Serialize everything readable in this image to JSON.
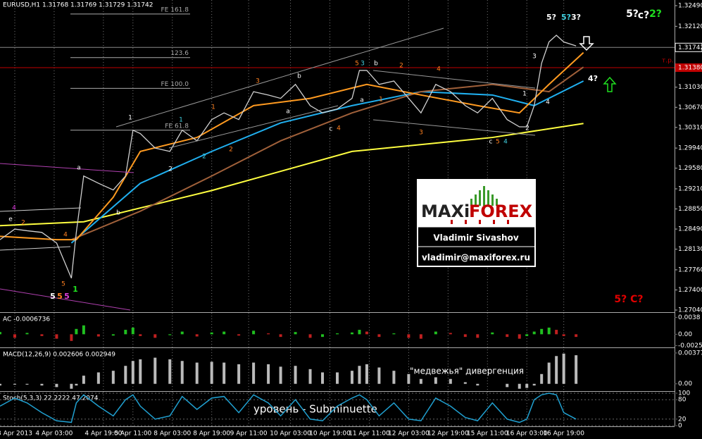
{
  "header": "EURUSD,H1  1.31768 1.31769 1.31729 1.31742",
  "price_axis": {
    "ylim": [
      1.27002,
      1.32591
    ],
    "ticks": [
      {
        "value": 1.3249,
        "label": "1.32490"
      },
      {
        "value": 1.3212,
        "label": "1.32120"
      },
      {
        "value": 1.3103,
        "label": "1.31030"
      },
      {
        "value": 1.3067,
        "label": "1.30670"
      },
      {
        "value": 1.3031,
        "label": "1.30310"
      },
      {
        "value": 1.2994,
        "label": "1.29940"
      },
      {
        "value": 1.2958,
        "label": "1.29580"
      },
      {
        "value": 1.2921,
        "label": "1.29210"
      },
      {
        "value": 1.2885,
        "label": "1.28850"
      },
      {
        "value": 1.2849,
        "label": "1.28490"
      },
      {
        "value": 1.2813,
        "label": "1.28130"
      },
      {
        "value": 1.2776,
        "label": "1.27760"
      },
      {
        "value": 1.274,
        "label": "1.27400"
      },
      {
        "value": 1.2704,
        "label": "1.27040"
      }
    ],
    "current": {
      "value": 1.31742,
      "label": "1.31742"
    },
    "level": {
      "value": 1.3138,
      "label": "1.31380",
      "name": "т.р.",
      "color": "#c00000"
    }
  },
  "time_axis": {
    "xlim": [
      0,
      274
    ],
    "ticks": [
      {
        "value": 6,
        "label": "3 Apr 2013"
      },
      {
        "value": 22,
        "label": "4 Apr 03:00"
      },
      {
        "value": 42,
        "label": "4 Apr 19:00"
      },
      {
        "value": 54,
        "label": "5 Apr 11:00"
      },
      {
        "value": 70,
        "label": "8 Apr 03:00"
      },
      {
        "value": 86,
        "label": "8 Apr 19:00"
      },
      {
        "value": 101,
        "label": "9 Apr 11:00"
      },
      {
        "value": 118,
        "label": "10 Apr 03:00"
      },
      {
        "value": 134,
        "label": "10 Apr 19:00"
      },
      {
        "value": 150,
        "label": "11 Apr 11:00"
      },
      {
        "value": 166,
        "label": "12 Apr 03:00"
      },
      {
        "value": 182,
        "label": "12 Apr 19:00"
      },
      {
        "value": 198,
        "label": "15 Apr 11:00"
      },
      {
        "value": 214,
        "label": "16 Apr 03:00"
      },
      {
        "value": 229,
        "label": "16 Apr 19:00"
      }
    ]
  },
  "price": {
    "color": "#d0d0d0",
    "x": [
      0,
      6,
      11,
      17,
      23,
      29,
      31,
      34,
      40,
      46,
      51,
      54,
      57,
      63,
      69,
      74,
      80,
      86,
      91,
      97,
      103,
      109,
      114,
      120,
      126,
      131,
      137,
      143,
      146,
      149,
      154,
      160,
      166,
      171,
      177,
      183,
      189,
      194,
      200,
      206,
      211,
      214,
      217,
      220,
      223,
      226,
      229,
      234
    ],
    "values": [
      1.283,
      1.2849,
      1.2846,
      1.2843,
      1.2824,
      1.2761,
      1.2843,
      1.2944,
      1.2931,
      1.2919,
      1.2944,
      1.3026,
      1.302,
      1.2994,
      1.2988,
      1.3026,
      1.3007,
      1.3045,
      1.3057,
      1.3045,
      1.3095,
      1.3089,
      1.3083,
      1.3108,
      1.307,
      1.3057,
      1.3064,
      1.3083,
      1.3133,
      1.3133,
      1.3108,
      1.3114,
      1.3083,
      1.3057,
      1.3108,
      1.3095,
      1.307,
      1.3057,
      1.3083,
      1.3045,
      1.3032,
      1.3032,
      1.307,
      1.3146,
      1.3184,
      1.3196,
      1.3184,
      1.3177
    ]
  },
  "moving_averages": [
    {
      "color": "#ffff40",
      "x": [
        0,
        34,
        86,
        143,
        200,
        237
      ],
      "values": [
        1.2855,
        1.2862,
        1.2918,
        1.2988,
        1.3013,
        1.3038
      ]
    },
    {
      "color": "#20b0f0",
      "x": [
        29,
        57,
        86,
        114,
        143,
        171,
        200,
        217,
        237
      ],
      "values": [
        1.2824,
        1.2931,
        1.2988,
        1.3039,
        1.307,
        1.3095,
        1.3089,
        1.307,
        1.3114
      ]
    },
    {
      "color": "#a0603a",
      "x": [
        29,
        57,
        86,
        114,
        143,
        171,
        200,
        223,
        237
      ],
      "values": [
        1.283,
        1.2881,
        1.2944,
        1.3007,
        1.3057,
        1.3095,
        1.3108,
        1.3095,
        1.3139
      ]
    },
    {
      "color": "#ff9a20",
      "x": [
        0,
        23,
        31,
        46,
        57,
        80,
        103,
        126,
        149,
        171,
        194,
        211,
        223,
        237
      ],
      "values": [
        1.2836,
        1.283,
        1.283,
        1.2906,
        1.2988,
        1.3013,
        1.307,
        1.3083,
        1.3108,
        1.3089,
        1.307,
        1.3057,
        1.3108,
        1.3165
      ]
    }
  ],
  "fib_levels": [
    {
      "value": 1.3234,
      "label": "FE 161.8"
    },
    {
      "value": 1.3156,
      "label": "123.6"
    },
    {
      "value": 1.3101,
      "label": "FE 100.0"
    },
    {
      "value": 1.3026,
      "label": "FE 61.8"
    }
  ],
  "annotations": [
    {
      "text": "1",
      "color": "#ffffff"
    },
    {
      "text": "a",
      "color": "#ffffff"
    },
    {
      "text": "b",
      "color": "#ffffff"
    },
    {
      "text": "2",
      "color": "#ffffff"
    },
    {
      "text": "1",
      "color": "#40d0e0"
    },
    {
      "text": "2",
      "color": "#40d0e0"
    },
    {
      "text": "1",
      "color": "#ff8020"
    },
    {
      "text": "3",
      "color": "#ff8020"
    },
    {
      "text": "2",
      "color": "#ff8020"
    },
    {
      "text": "b",
      "color": "#ffffff"
    },
    {
      "text": "a",
      "color": "#ffffff"
    },
    {
      "text": "c",
      "color": "#ffffff"
    },
    {
      "text": "4",
      "color": "#ff8020"
    },
    {
      "text": "5",
      "color": "#ff8020"
    },
    {
      "text": "3",
      "color": "#40d0e0"
    },
    {
      "text": "b",
      "color": "#ffffff"
    },
    {
      "text": "a",
      "color": "#ffffff"
    },
    {
      "text": "1",
      "color": "#ff8020"
    },
    {
      "text": "2",
      "color": "#ff8020"
    },
    {
      "text": "4",
      "color": "#ff8020"
    },
    {
      "text": "3",
      "color": "#ff8020"
    },
    {
      "text": "c",
      "color": "#ffffff"
    },
    {
      "text": "5",
      "color": "#ff8020"
    },
    {
      "text": "4",
      "color": "#40d0e0"
    },
    {
      "text": "1",
      "color": "#ffffff"
    },
    {
      "text": "2",
      "color": "#ffffff"
    },
    {
      "text": "3",
      "color": "#ffffff"
    },
    {
      "text": "4",
      "color": "#ffffff"
    },
    {
      "text": "5?",
      "color": "#ffffff"
    },
    {
      "text": "5?",
      "color": "#40d0e0"
    },
    {
      "text": "3?",
      "color": "#ffffff"
    },
    {
      "text": "4?",
      "color": "#ffffff"
    },
    {
      "text": "5?",
      "color": "#ffffff"
    },
    {
      "text": "c?",
      "color": "#ffffff"
    },
    {
      "text": "2?",
      "color": "#20e020"
    },
    {
      "text": "4",
      "color": "#e040e0"
    },
    {
      "text": "e",
      "color": "#ffffff"
    },
    {
      "text": "2",
      "color": "#ff8020"
    },
    {
      "text": "4",
      "color": "#ff8020"
    },
    {
      "text": "5",
      "color": "#ff8020"
    },
    {
      "text": "1",
      "color": "#20e020"
    },
    {
      "text": "5",
      "color": "#ffffff"
    },
    {
      "text": "5",
      "color": "#ff8020"
    },
    {
      "text": "5",
      "color": "#e040e0"
    },
    {
      "text": "5? C?",
      "color": "#e00000"
    }
  ],
  "logo": {
    "brand_left": "MAXi",
    "brand_right": "FOREX",
    "name": "Vladimir Sivashov",
    "email": "vladimir@maxiforex.ru"
  },
  "notes": {
    "divergence": "\"медвежья\" дивергенция",
    "level": "уровень - Subminuette"
  },
  "ac": {
    "title": "AC -0.0006736",
    "ylim": [
      -0.0028,
      0.0045
    ],
    "ticks": [
      {
        "value": 0.0038,
        "label": "0.0038"
      },
      {
        "value": 0,
        "label": "0.00"
      },
      {
        "value": -0.00254,
        "label": "-0.00254"
      }
    ],
    "values": [
      0.0005,
      -0.0008,
      0.0003,
      -0.0004,
      -0.001,
      -0.0015,
      0.0012,
      0.002,
      -0.0005,
      -0.0003,
      0.001,
      0.0015,
      -0.0004,
      -0.0008,
      -0.0002,
      0.0006,
      -0.0005,
      0.0004,
      0.0006,
      -0.0003,
      0.0008,
      0.0002,
      -0.0006,
      0.0005,
      -0.0008,
      -0.0006,
      0.0002,
      0.0004,
      0.001,
      0.0006,
      -0.0006,
      0.0002,
      -0.0008,
      -0.001,
      0.0006,
      0.0003,
      -0.0006,
      -0.0008,
      0.0004,
      -0.0006,
      -0.001,
      -0.0004,
      0.0006,
      0.0012,
      0.0015,
      0.001,
      -0.0004,
      -0.0006
    ]
  },
  "macd": {
    "title": "MACD(12,26,9) 0.002606 0.002949",
    "ylim": [
      -0.0008,
      0.0042
    ],
    "ticks": [
      {
        "value": 0.003775,
        "label": "0.003775"
      },
      {
        "value": 0,
        "label": "0.00"
      }
    ],
    "values": [
      -0.0002,
      -0.0001,
      -0.0001,
      -0.0002,
      -0.0004,
      -0.0006,
      -0.0002,
      0.001,
      0.0014,
      0.0016,
      0.0022,
      0.0028,
      0.003,
      0.0032,
      0.003,
      0.0028,
      0.0026,
      0.0027,
      0.0026,
      0.0024,
      0.0026,
      0.0024,
      0.0021,
      0.0022,
      0.0018,
      0.0014,
      0.0014,
      0.0016,
      0.0022,
      0.0024,
      0.002,
      0.0016,
      0.0012,
      0.0006,
      0.0008,
      0.0006,
      0.0002,
      -0.0002,
      0,
      -0.0004,
      -0.0006,
      -0.0005,
      -0.0002,
      0.0012,
      0.0026,
      0.0034,
      0.0037,
      0.0035
    ]
  },
  "stoch": {
    "title": "Stoch(5,3,3) 22.2222 47.2074",
    "ylim": [
      0,
      100
    ],
    "ticks": [
      100,
      80,
      20,
      0
    ],
    "values": [
      60,
      85,
      70,
      40,
      15,
      10,
      70,
      95,
      60,
      30,
      80,
      95,
      60,
      20,
      30,
      90,
      50,
      85,
      90,
      40,
      95,
      70,
      30,
      80,
      20,
      15,
      60,
      85,
      95,
      80,
      30,
      70,
      20,
      15,
      85,
      60,
      25,
      15,
      70,
      20,
      10,
      20,
      80,
      95,
      100,
      95,
      40,
      20
    ]
  }
}
